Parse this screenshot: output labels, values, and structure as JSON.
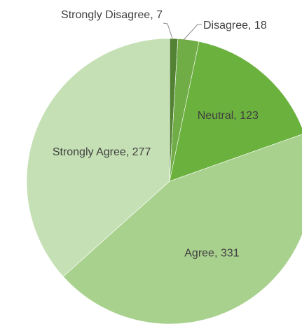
{
  "chart_data": {
    "type": "pie",
    "title": "",
    "categories": [
      "Strongly Disagree",
      "Disagree",
      "Neutral",
      "Agree",
      "Strongly Agree"
    ],
    "values": [
      7,
      18,
      123,
      331,
      277
    ],
    "labels": [
      "Strongly Disagree, 7",
      "Disagree, 18",
      "Neutral, 123",
      "Agree, 331",
      "Strongly Agree, 277"
    ],
    "colors": [
      "#548235",
      "#70ad47",
      "#6bb13e",
      "#a9d18e",
      "#c5e0b4"
    ],
    "label_colors": [
      "#404040",
      "#404040",
      "#404040",
      "#404040",
      "#404040"
    ],
    "legend": "none",
    "start_angle": "top",
    "direction": "clockwise"
  }
}
